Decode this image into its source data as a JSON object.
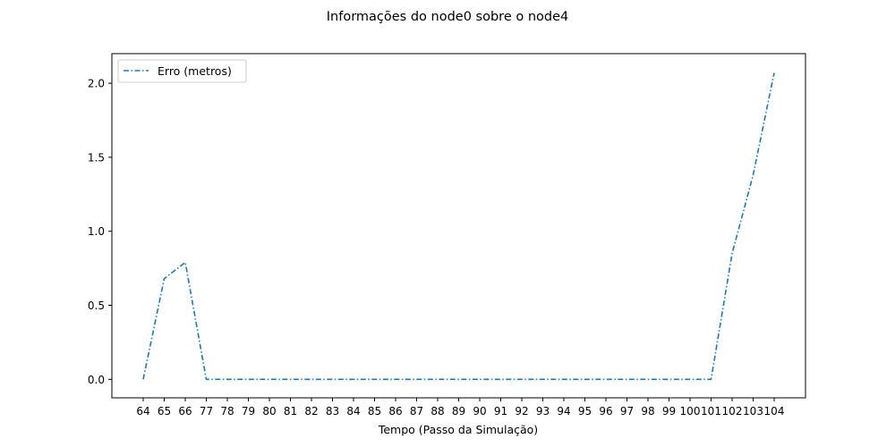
{
  "chart_data": {
    "type": "line",
    "title": "Informações do node0 sobre o node4",
    "xlabel": "Tempo (Passo da Simulação)",
    "ylabel": "",
    "categories": [
      "64",
      "65",
      "66",
      "77",
      "78",
      "79",
      "80",
      "81",
      "82",
      "83",
      "84",
      "85",
      "86",
      "87",
      "88",
      "89",
      "90",
      "91",
      "92",
      "93",
      "94",
      "95",
      "96",
      "97",
      "98",
      "99",
      "100",
      "101",
      "102",
      "103",
      "104"
    ],
    "series": [
      {
        "name": "Erro (metros)",
        "color": "#1f77b4",
        "line_style": "dash-dot",
        "values": [
          0.0,
          0.68,
          0.79,
          0.0,
          0.0,
          0.0,
          0.0,
          0.0,
          0.0,
          0.0,
          0.0,
          0.0,
          0.0,
          0.0,
          0.0,
          0.0,
          0.0,
          0.0,
          0.0,
          0.0,
          0.0,
          0.0,
          0.0,
          0.0,
          0.0,
          0.0,
          0.0,
          0.0,
          0.85,
          1.38,
          2.07
        ]
      }
    ],
    "ylim": [
      -0.125,
      2.2
    ],
    "yticks": [
      "0.0",
      "0.5",
      "1.0",
      "1.5",
      "2.0"
    ],
    "legend_position": "top-left",
    "grid": false
  }
}
